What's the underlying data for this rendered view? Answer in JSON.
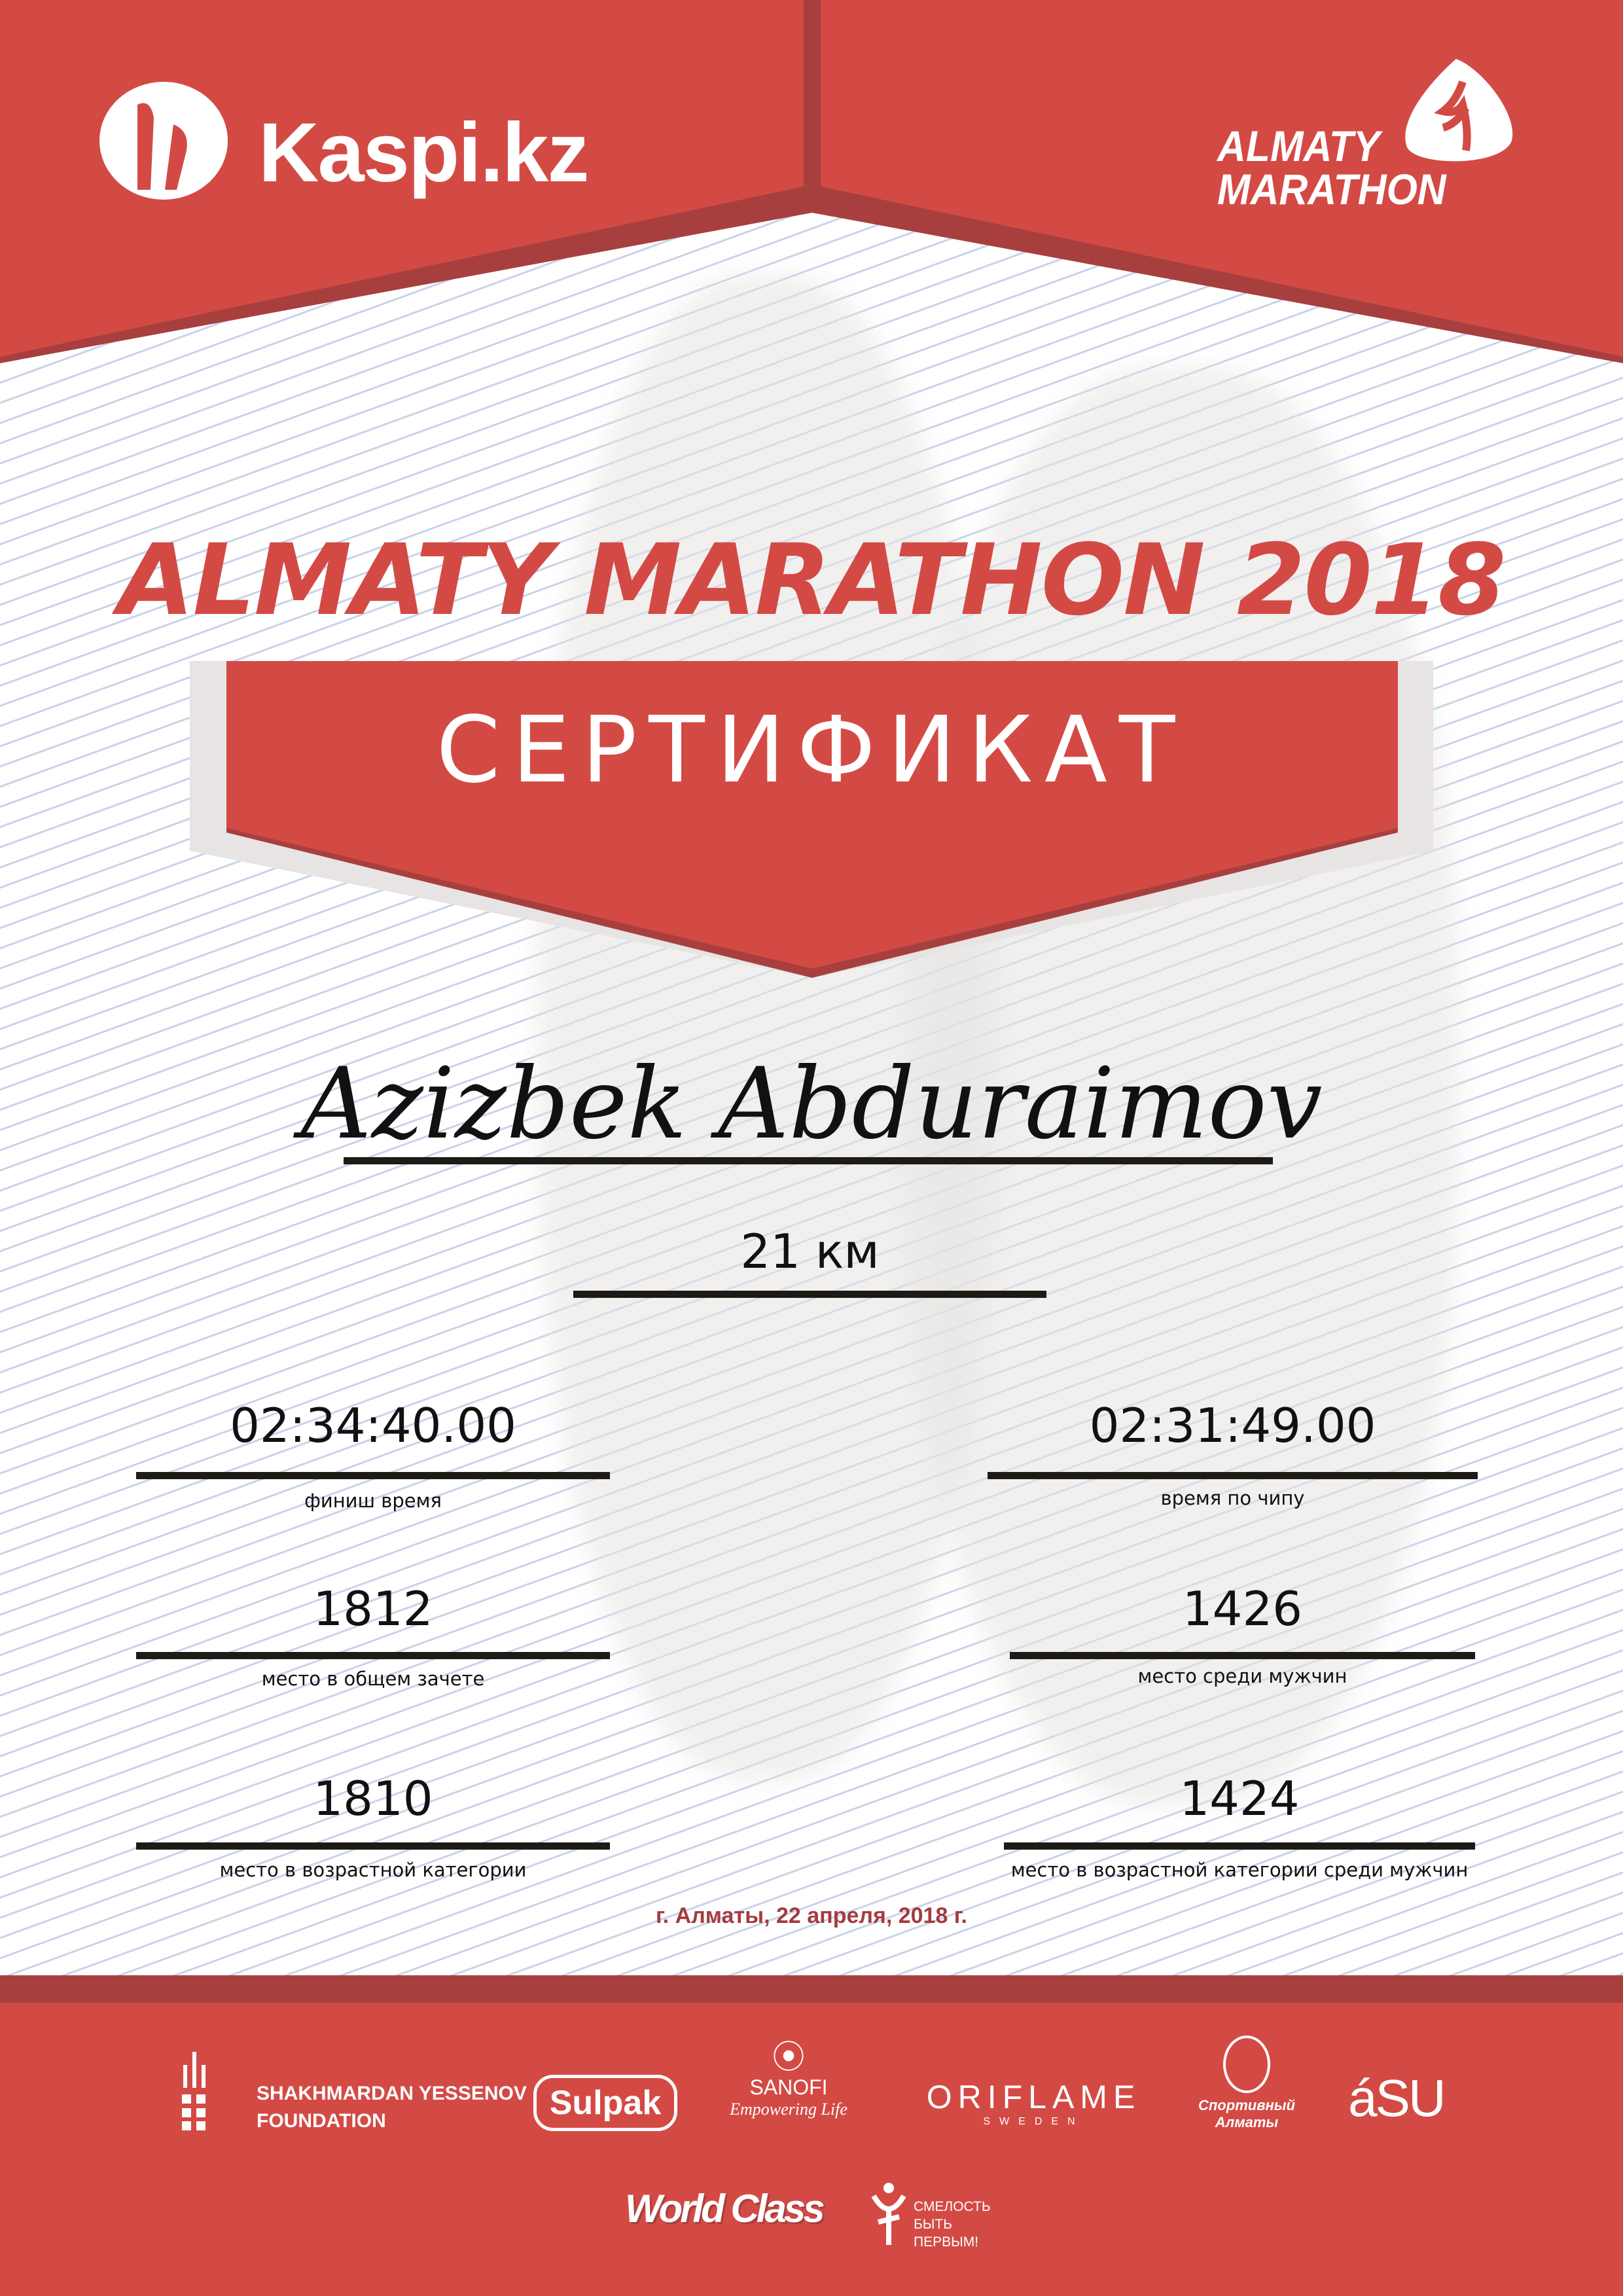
{
  "colors": {
    "accent": "#d34a45",
    "accent_dark": "#a83f3f",
    "date_color": "#a53b3f"
  },
  "header": {
    "left_logo": "Kaspi.kz",
    "right_logo_line1": "ALMATY",
    "right_logo_line2": "MARATHON"
  },
  "title": "ALMATY MARATHON 2018",
  "banner": "СЕРТИФИКАТ",
  "participant_name": "Azizbek Abduraimov",
  "distance": "21 км",
  "results": [
    {
      "value": "02:34:40.00",
      "label": "финиш время"
    },
    {
      "value": "02:31:49.00",
      "label": "время по чипу"
    },
    {
      "value": "1812",
      "label": "место в общем зачете"
    },
    {
      "value": "1426",
      "label": "место среди мужчин"
    },
    {
      "value": "1810",
      "label": "место в возрастной категории"
    },
    {
      "value": "1424",
      "label": "место в возрастной категории среди мужчин"
    }
  ],
  "date": "г. Алматы, 22 апреля, 2018 г.",
  "sponsors": {
    "yessenov": [
      "SHAKHMARDAN YESSENOV",
      "FOUNDATION"
    ],
    "sulpak": "Sulpak",
    "sanofi": [
      "SANOFI",
      "Empowering Life"
    ],
    "oriflame": [
      "ORIFLAME",
      "SWEDEN"
    ],
    "sportalmaty": [
      "Спортивный",
      "Алматы"
    ],
    "asu": "áSU",
    "worldclass": "World Class",
    "fund": [
      "СМЕЛОСТЬ",
      "БЫТЬ",
      "ПЕРВЫМ!"
    ]
  }
}
